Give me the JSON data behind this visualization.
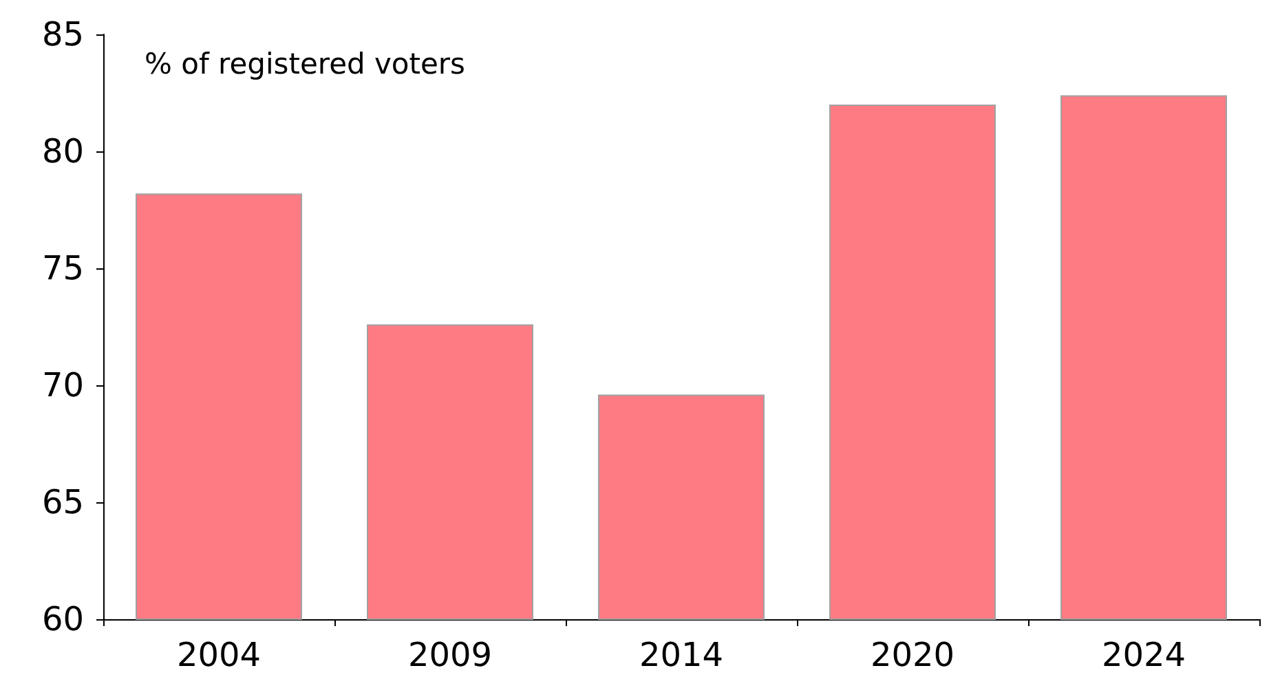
{
  "chart_data": {
    "type": "bar",
    "ylabel": "% of registered voters",
    "categories": [
      "2004",
      "2009",
      "2014",
      "2020",
      "2024"
    ],
    "values": [
      78.2,
      72.6,
      69.6,
      82.0,
      82.4
    ],
    "color": "#ff7b83",
    "ylim": [
      60,
      85
    ],
    "yticks": [
      60,
      65,
      70,
      75,
      80,
      85
    ],
    "grid": false
  }
}
